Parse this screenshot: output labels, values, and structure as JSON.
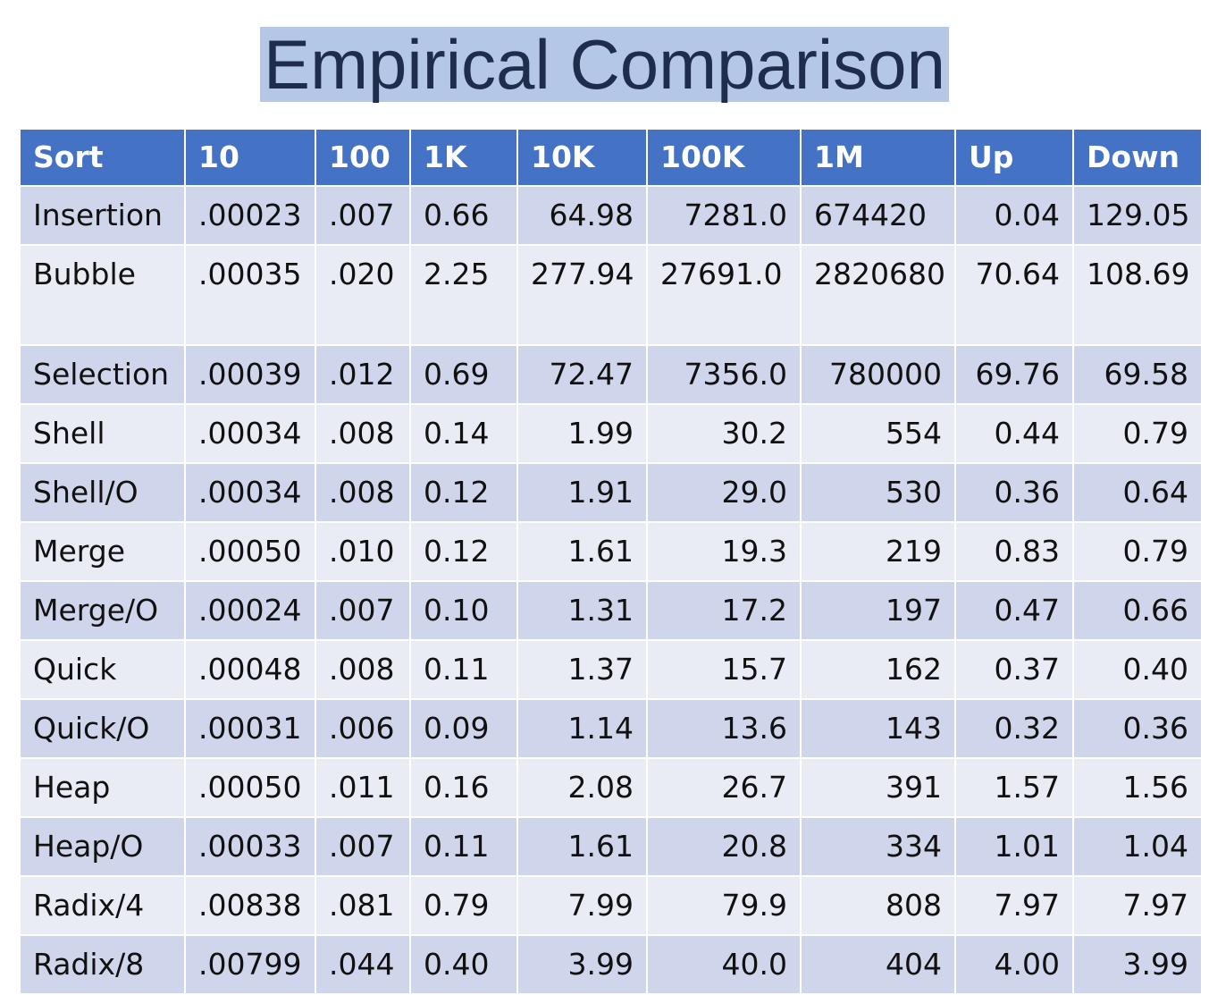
{
  "title": "Empirical Comparison",
  "table": {
    "headers": [
      "Sort",
      "10",
      "100",
      "1K",
      "10K",
      "100K",
      "1M",
      "Up",
      "Down"
    ],
    "rows": [
      {
        "name": "Insertion",
        "c10": ".00023",
        "c100": ".007",
        "c1k": "0.66",
        "c10k": "64.98",
        "c100k": "7281.0",
        "c1m": "674420",
        "up": "0.04",
        "down": "129.05"
      },
      {
        "name": "Bubble",
        "c10": ".00035",
        "c100": ".020",
        "c1k": "2.25",
        "c10k": "277.94",
        "c100k": "27691.0",
        "c1m": "2820680",
        "up": "70.64",
        "down": "108.69"
      },
      {
        "name": "Selection",
        "c10": ".00039",
        "c100": ".012",
        "c1k": "0.69",
        "c10k": "72.47",
        "c100k": "7356.0",
        "c1m": "780000",
        "up": "69.76",
        "down": "69.58"
      },
      {
        "name": "Shell",
        "c10": ".00034",
        "c100": ".008",
        "c1k": "0.14",
        "c10k": "1.99",
        "c100k": "30.2",
        "c1m": "554",
        "up": "0.44",
        "down": "0.79"
      },
      {
        "name": "Shell/O",
        "c10": ".00034",
        "c100": ".008",
        "c1k": "0.12",
        "c10k": "1.91",
        "c100k": "29.0",
        "c1m": "530",
        "up": "0.36",
        "down": "0.64"
      },
      {
        "name": "Merge",
        "c10": ".00050",
        "c100": ".010",
        "c1k": "0.12",
        "c10k": "1.61",
        "c100k": "19.3",
        "c1m": "219",
        "up": "0.83",
        "down": "0.79"
      },
      {
        "name": "Merge/O",
        "c10": ".00024",
        "c100": ".007",
        "c1k": "0.10",
        "c10k": "1.31",
        "c100k": "17.2",
        "c1m": "197",
        "up": "0.47",
        "down": "0.66"
      },
      {
        "name": "Quick",
        "c10": ".00048",
        "c100": ".008",
        "c1k": "0.11",
        "c10k": "1.37",
        "c100k": "15.7",
        "c1m": "162",
        "up": "0.37",
        "down": "0.40"
      },
      {
        "name": "Quick/O",
        "c10": ".00031",
        "c100": ".006",
        "c1k": "0.09",
        "c10k": "1.14",
        "c100k": "13.6",
        "c1m": "143",
        "up": "0.32",
        "down": "0.36"
      },
      {
        "name": "Heap",
        "c10": ".00050",
        "c100": ".011",
        "c1k": "0.16",
        "c10k": "2.08",
        "c100k": "26.7",
        "c1m": "391",
        "up": "1.57",
        "down": "1.56"
      },
      {
        "name": "Heap/O",
        "c10": ".00033",
        "c100": ".007",
        "c1k": "0.11",
        "c10k": "1.61",
        "c100k": "20.8",
        "c1m": "334",
        "up": "1.01",
        "down": "1.04"
      },
      {
        "name": "Radix/4",
        "c10": ".00838",
        "c100": ".081",
        "c1k": "0.79",
        "c10k": "7.99",
        "c100k": "79.9",
        "c1m": "808",
        "up": "7.97",
        "down": "7.97"
      },
      {
        "name": "Radix/8",
        "c10": ".00799",
        "c100": ".044",
        "c1k": "0.40",
        "c10k": "3.99",
        "c100k": "40.0",
        "c1m": "404",
        "up": "4.00",
        "down": "3.99"
      }
    ]
  }
}
